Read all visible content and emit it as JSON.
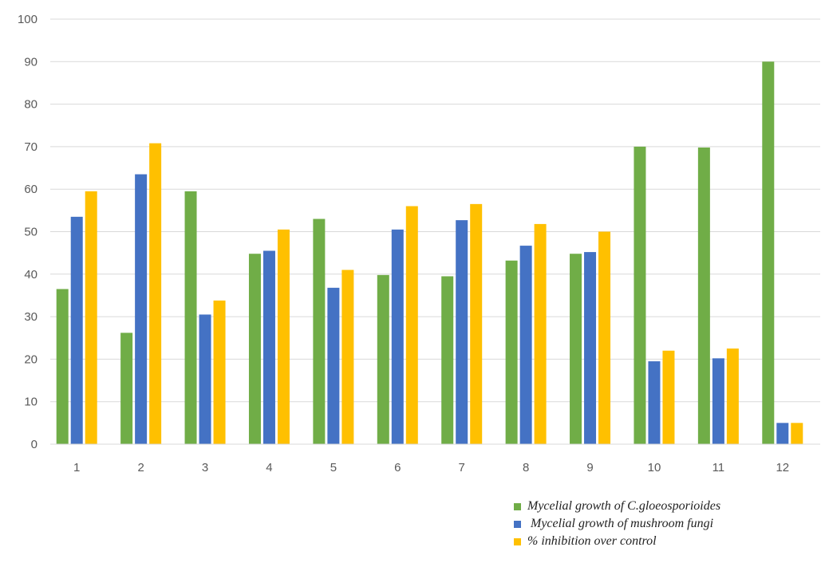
{
  "chart_data": {
    "type": "bar",
    "title": "",
    "xlabel": "",
    "ylabel": "",
    "categories": [
      "1",
      "2",
      "3",
      "4",
      "5",
      "6",
      "7",
      "8",
      "9",
      "10",
      "11",
      "12"
    ],
    "ylim": [
      0,
      100
    ],
    "yticks": [
      "0",
      "10",
      "20",
      "30",
      "40",
      "50",
      "60",
      "70",
      "80",
      "90",
      "100"
    ],
    "grid": true,
    "legend_position": "bottom-right",
    "series": [
      {
        "name": "Mycelial growth of C.gloeosporioides",
        "color": "#70ad47",
        "values": [
          36.5,
          26.2,
          59.5,
          44.8,
          53.0,
          39.8,
          39.5,
          43.2,
          44.8,
          70.0,
          69.8,
          90.0
        ]
      },
      {
        "name": " Mycelial growth of mushroom fungi",
        "color": "#4472c4",
        "values": [
          53.5,
          63.5,
          30.5,
          45.5,
          36.8,
          50.5,
          52.7,
          46.7,
          45.2,
          19.5,
          20.2,
          5.0
        ]
      },
      {
        "name": "% inhibition over control",
        "color": "#ffc000",
        "values": [
          59.5,
          70.8,
          33.8,
          50.5,
          41.0,
          56.0,
          56.5,
          51.8,
          50.0,
          22.0,
          22.5,
          5.0
        ]
      }
    ]
  }
}
